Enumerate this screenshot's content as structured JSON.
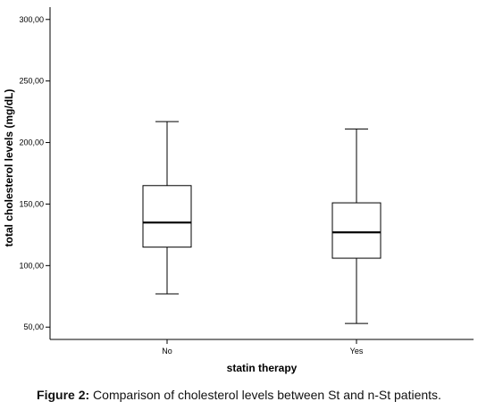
{
  "chart_data": {
    "type": "box",
    "xlabel": "statin therapy",
    "ylabel": "total cholesterol levels (mg/dL)",
    "categories": [
      "No",
      "Yes"
    ],
    "ylim": [
      40,
      310
    ],
    "yticks": [
      50,
      100,
      150,
      200,
      250,
      300
    ],
    "ytick_labels": [
      "50,00",
      "100,00",
      "150,00",
      "200,00",
      "250,00",
      "300,00"
    ],
    "boxes": [
      {
        "category": "No",
        "min": 77,
        "q1": 115,
        "median": 135,
        "q3": 165,
        "max": 217
      },
      {
        "category": "Yes",
        "min": 53,
        "q1": 106,
        "median": 127,
        "q3": 151,
        "max": 211
      }
    ],
    "grid": false
  },
  "caption": {
    "label": "Figure 2:",
    "text": " Comparison of cholesterol levels between St and n-St patients."
  }
}
